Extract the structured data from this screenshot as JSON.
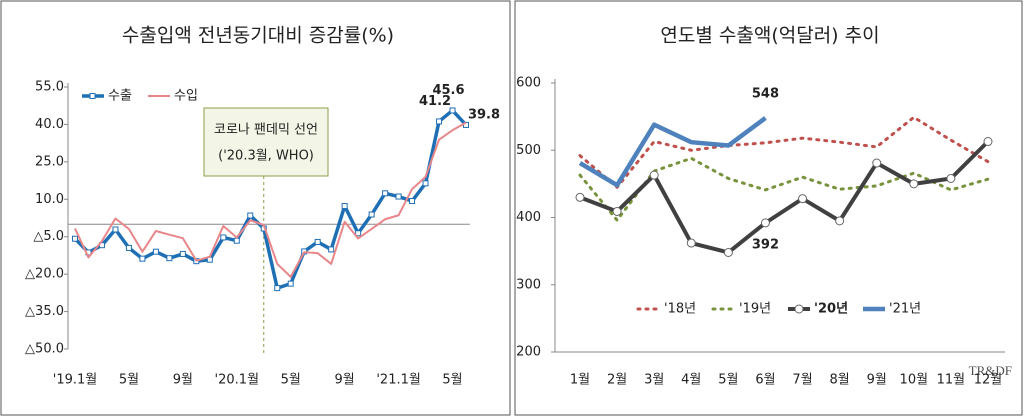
{
  "chart_data": [
    {
      "type": "line",
      "title": "수출입액 전년동기대비 증감률(%)",
      "categories": [
        "'19.1월",
        null,
        null,
        null,
        "5월",
        null,
        null,
        null,
        "9월",
        null,
        null,
        null,
        "'20.1월",
        null,
        null,
        null,
        "5월",
        null,
        null,
        null,
        "9월",
        null,
        null,
        null,
        "'21.1월",
        null,
        null,
        null,
        "5월",
        null
      ],
      "series": [
        {
          "name": "수출",
          "color": "#1f6fb5",
          "style": "dashed-marker",
          "values": [
            -5.8,
            -11.3,
            -8.4,
            -2.1,
            -9.5,
            -13.8,
            -11.0,
            -13.6,
            -11.9,
            -14.8,
            -14.2,
            -5.3,
            -6.6,
            3.5,
            -1.7,
            -25.6,
            -23.8,
            -10.9,
            -7.1,
            -10.1,
            7.3,
            -3.6,
            3.9,
            12.4,
            11.1,
            9.3,
            16.4,
            41.2,
            45.6,
            39.8
          ],
          "value_labels": [
            null,
            null,
            null,
            null,
            null,
            null,
            null,
            null,
            null,
            null,
            null,
            null,
            null,
            null,
            null,
            null,
            null,
            null,
            null,
            null,
            null,
            null,
            null,
            null,
            null,
            null,
            null,
            "41.2",
            "45.6",
            "39.8"
          ]
        },
        {
          "name": "수입",
          "color": "#e8868a",
          "style": "solid",
          "values": [
            -1.7,
            -13.3,
            -6.7,
            2.3,
            -1.9,
            -11.0,
            -2.7,
            -4.2,
            -5.6,
            -14.6,
            -13.0,
            -0.7,
            -5.3,
            1.6,
            -0.3,
            -15.9,
            -21.1,
            -11.2,
            -11.6,
            -15.9,
            1.0,
            -5.7,
            -1.9,
            2.0,
            3.6,
            14.1,
            19.0,
            33.9,
            37.7,
            40.7
          ]
        }
      ],
      "ylim": [
        -50,
        55
      ],
      "yticks": [
        {
          "value": 55,
          "label": "55.0"
        },
        {
          "value": 40,
          "label": "40.0"
        },
        {
          "value": 25,
          "label": "25.0"
        },
        {
          "value": 10,
          "label": "10.0"
        },
        {
          "value": -5,
          "label": "△5.0"
        },
        {
          "value": -20,
          "label": "△20.0"
        },
        {
          "value": -35,
          "label": "△35.0"
        },
        {
          "value": -50,
          "label": "△50.0"
        }
      ],
      "annotation": {
        "text": "코로나 팬데믹 선언",
        "subtext": "('20.3월, WHO)",
        "index": 14
      },
      "legend": "upper left"
    },
    {
      "type": "line",
      "title": "연도별 수출액(억달러) 추이",
      "categories": [
        "1월",
        "2월",
        "3월",
        "4월",
        "5월",
        "6월",
        "7월",
        "8월",
        "9월",
        "10월",
        "11월",
        "12월"
      ],
      "series": [
        {
          "name": "'18년",
          "color": "#c0504d",
          "style": "dotted",
          "values": [
            492,
            445,
            513,
            500,
            507,
            511,
            518,
            512,
            505,
            549,
            515,
            483
          ]
        },
        {
          "name": "'19년",
          "color": "#77933c",
          "style": "dotted",
          "values": [
            463,
            396,
            469,
            488,
            458,
            441,
            460,
            442,
            447,
            466,
            441,
            457
          ]
        },
        {
          "name": "'20년",
          "color": "#404040",
          "style": "circle-marker",
          "values": [
            430,
            409,
            463,
            362,
            348,
            392,
            428,
            395,
            481,
            450,
            458,
            513
          ],
          "value_labels": [
            null,
            null,
            null,
            null,
            null,
            "392",
            null,
            null,
            null,
            null,
            null,
            null
          ]
        },
        {
          "name": "'21년",
          "color": "#4f81bd",
          "style": "thick",
          "values": [
            481,
            448,
            538,
            512,
            507,
            548,
            null,
            null,
            null,
            null,
            null,
            null
          ],
          "value_labels": [
            null,
            null,
            null,
            null,
            null,
            "548",
            null,
            null,
            null,
            null,
            null,
            null
          ]
        }
      ],
      "ylim": [
        200,
        600
      ],
      "yticks": [
        200,
        300,
        400,
        500,
        600
      ],
      "legend": "lower center",
      "watermark": "TR&DF"
    }
  ]
}
